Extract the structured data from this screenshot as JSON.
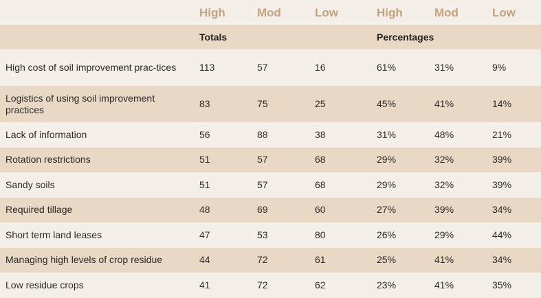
{
  "levels": [
    "High",
    "Mod",
    "Low",
    "High",
    "Mod",
    "Low"
  ],
  "groups": {
    "totals": "Totals",
    "percentages": "Percentages"
  },
  "rows": [
    {
      "label": "High cost of soil improvement prac-tices",
      "values": [
        "113",
        "57",
        "16",
        "61%",
        "31%",
        "9%"
      ]
    },
    {
      "label": "Logistics of using soil improvement practices",
      "values": [
        "83",
        "75",
        "25",
        "45%",
        "41%",
        "14%"
      ]
    },
    {
      "label": "Lack of information",
      "values": [
        "56",
        "88",
        "38",
        "31%",
        "48%",
        "21%"
      ]
    },
    {
      "label": "Rotation restrictions",
      "values": [
        "51",
        "57",
        "68",
        "29%",
        "32%",
        "39%"
      ]
    },
    {
      "label": "Sandy soils",
      "values": [
        "51",
        "57",
        "68",
        "29%",
        "32%",
        "39%"
      ]
    },
    {
      "label": "Required tillage",
      "values": [
        "48",
        "69",
        "60",
        "27%",
        "39%",
        "34%"
      ]
    },
    {
      "label": "Short term land leases",
      "values": [
        "47",
        "53",
        "80",
        "26%",
        "29%",
        "44%"
      ]
    },
    {
      "label": "Managing high levels of crop residue",
      "values": [
        "44",
        "72",
        "61",
        "25%",
        "41%",
        "34%"
      ]
    },
    {
      "label": "Low residue crops",
      "values": [
        "41",
        "72",
        "62",
        "23%",
        "41%",
        "35%"
      ]
    }
  ],
  "colors": {
    "header_text": "#c4a27a",
    "band": "#e8d8c4",
    "background": "#f5efe9"
  }
}
